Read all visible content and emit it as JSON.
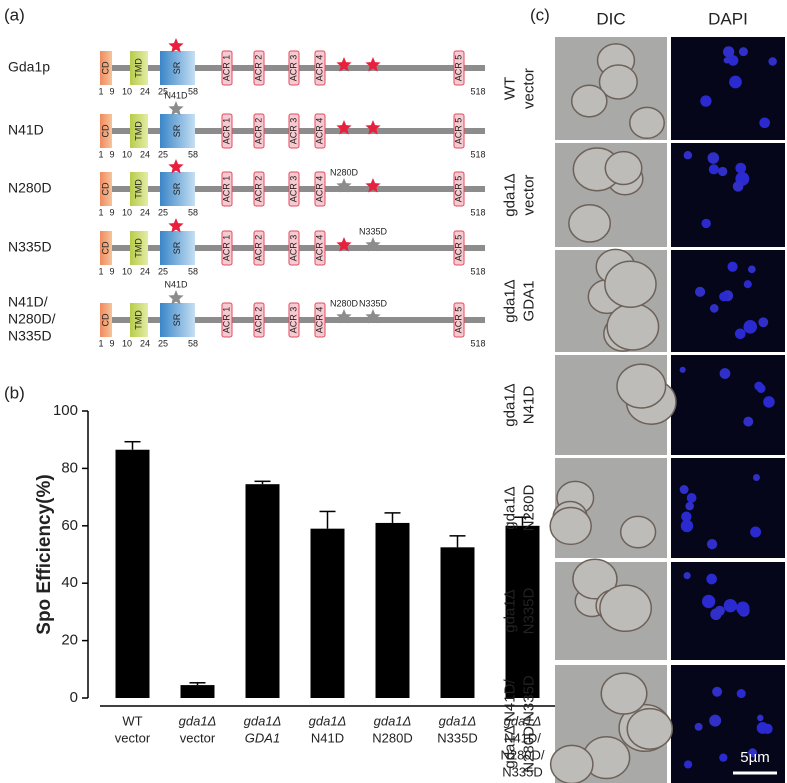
{
  "panel_labels": [
    "(a)",
    "(b)",
    "(c)"
  ],
  "domains": [
    "CD",
    "TMD",
    "SR",
    "ACR 1",
    "ACR 2",
    "ACR 3",
    "ACR 4",
    "ACR 5"
  ],
  "residues": [
    1,
    9,
    10,
    24,
    25,
    58,
    518
  ],
  "constructs": [
    {
      "label": [
        "Gda1p"
      ],
      "stars": [
        null,
        null,
        null
      ]
    },
    {
      "label": [
        "N41D"
      ],
      "stars": [
        "N41D",
        null,
        null
      ]
    },
    {
      "label": [
        "N280D"
      ],
      "stars": [
        null,
        "N280D",
        null
      ]
    },
    {
      "label": [
        "N335D"
      ],
      "stars": [
        null,
        null,
        "N335D"
      ]
    },
    {
      "label": [
        "N41D/",
        "N280D/",
        "N335D"
      ],
      "stars": [
        "N41D",
        "N280D",
        "N335D"
      ]
    }
  ],
  "chart_data": {
    "type": "bar",
    "ylabel": "Spo Efficiency(%)",
    "categories": [
      [
        "WT",
        "vector"
      ],
      [
        "gda1Δ",
        "vector"
      ],
      [
        "gda1Δ",
        "GDA1"
      ],
      [
        "gda1Δ",
        "N41D"
      ],
      [
        "gda1Δ",
        "N280D"
      ],
      [
        "gda1Δ",
        "N335D"
      ],
      [
        "gda1Δ",
        "N41D/",
        "N280D/",
        "N335D"
      ]
    ],
    "values": [
      86.5,
      4.5,
      74.5,
      59,
      61,
      52.5,
      60
    ],
    "errors": [
      2.8,
      0.8,
      1,
      6,
      3.5,
      4,
      3
    ],
    "color": "#000000",
    "ylim": [
      0,
      100
    ],
    "yticks": [
      0,
      20,
      40,
      60,
      80,
      100
    ]
  },
  "microscopy": {
    "columns": [
      "DIC",
      "DAPI"
    ],
    "rows": [
      [
        "WT",
        "vector"
      ],
      [
        "gda1Δ",
        "vector"
      ],
      [
        "gda1Δ",
        "GDA1"
      ],
      [
        "gda1Δ",
        "N41D"
      ],
      [
        "gda1Δ",
        "N280D"
      ],
      [
        "gda1Δ",
        "N335D"
      ],
      [
        "gda1Δ N41D/",
        "N280D/N335D"
      ]
    ],
    "scale_bar": "5µm"
  }
}
